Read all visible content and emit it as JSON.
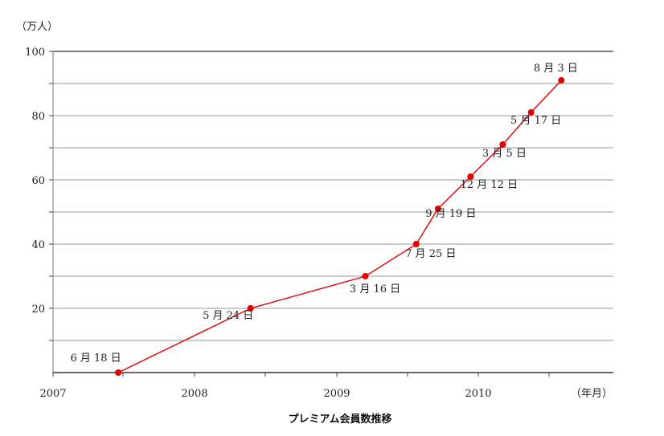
{
  "chart_data": {
    "type": "line",
    "title": "プレミアム会員数推移",
    "ylabel": "（万人）",
    "xlabel": "（年月）",
    "ylim": [
      0,
      100
    ],
    "y_major_ticks": [
      20,
      40,
      60,
      80,
      100
    ],
    "y_gridlines": [
      10,
      20,
      30,
      40,
      50,
      60,
      70,
      80,
      90,
      100
    ],
    "x_tick_labels": [
      "2007",
      "2008",
      "2009",
      "2010"
    ],
    "series": [
      {
        "color": "#e60000",
        "points": [
          {
            "date": "2007-06-18",
            "value": 0,
            "label": "6 月 18 日"
          },
          {
            "date": "2008-05-24",
            "value": 20,
            "label": "5 月 24 日"
          },
          {
            "date": "2009-03-16",
            "value": 30,
            "label": "3 月 16 日"
          },
          {
            "date": "2009-07-25",
            "value": 40,
            "label": "7 月 25 日"
          },
          {
            "date": "2009-09-19",
            "value": 51,
            "label": "9 月 19 日"
          },
          {
            "date": "2009-12-12",
            "value": 61,
            "label": "12 月 12 日"
          },
          {
            "date": "2010-03-05",
            "value": 71,
            "label": "3 月 5 日"
          },
          {
            "date": "2010-05-17",
            "value": 81,
            "label": "5 月 17 日"
          },
          {
            "date": "2010-08-03",
            "value": 91,
            "label": "8 月 3 日"
          }
        ]
      }
    ],
    "grid": true,
    "legend": "none"
  }
}
